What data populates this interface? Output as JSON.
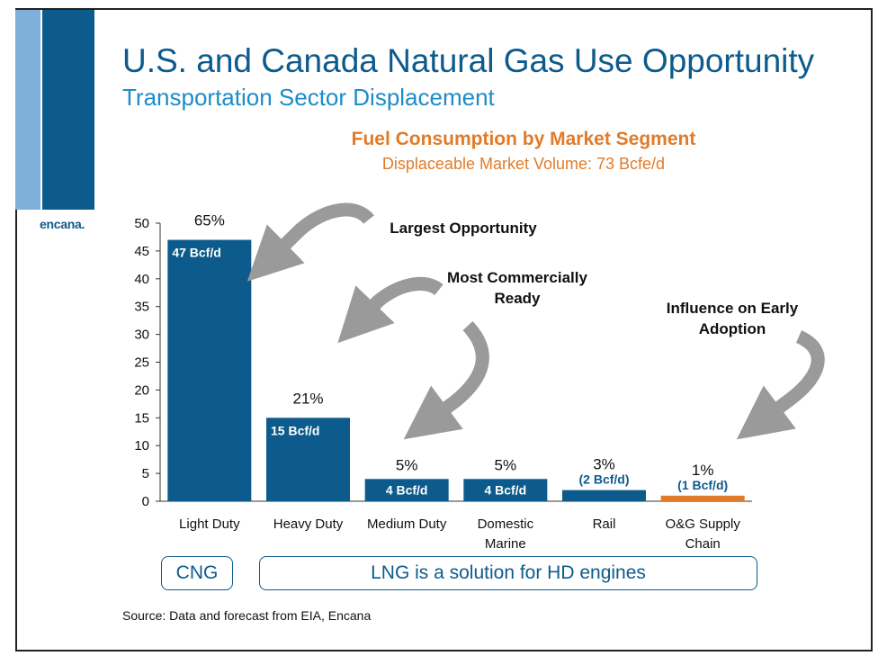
{
  "slide": {
    "title": "U.S. and Canada Natural Gas Use Opportunity",
    "subtitle": "Transportation Sector Displacement",
    "logo_text": "encana.",
    "source": "Source: Data and forecast from EIA, Encana",
    "colors": {
      "brand_dark": "#0d5b8c",
      "brand_light": "#7fb0dc",
      "accent_orange": "#e07b2a",
      "arrow_gray": "#9a9a9a"
    }
  },
  "annotations": {
    "largest": "Largest Opportunity",
    "commercial_line1": "Most Commercially",
    "commercial_line2": "Ready",
    "influence_line1": "Influence on Early",
    "influence_line2": "Adoption"
  },
  "boxes": {
    "cng": "CNG",
    "lng": "LNG is a solution for HD engines"
  },
  "chart_data": {
    "type": "bar",
    "title": "Fuel Consumption by Market Segment",
    "subtitle": "Displaceable Market Volume: 73 Bcfe/d",
    "categories": [
      [
        "Light Duty"
      ],
      [
        "Heavy Duty"
      ],
      [
        "Medium Duty"
      ],
      [
        "Domestic",
        "Marine"
      ],
      [
        "Rail"
      ],
      [
        "O&G Supply",
        "Chain"
      ]
    ],
    "values": [
      47,
      15,
      4,
      4,
      2,
      1
    ],
    "percent_labels": [
      "65%",
      "21%",
      "5%",
      "5%",
      "3%",
      "1%"
    ],
    "value_labels": [
      "47 Bcf/d",
      "15 Bcf/d",
      "4 Bcf/d",
      "4 Bcf/d",
      "(2 Bcf/d)",
      "(1 Bcf/d)"
    ],
    "bar_colors": [
      "#0d5b8c",
      "#0d5b8c",
      "#0d5b8c",
      "#0d5b8c",
      "#0d5b8c",
      "#e07b2a"
    ],
    "ylim": [
      0,
      50
    ],
    "yticks": [
      0,
      5,
      10,
      15,
      20,
      25,
      30,
      35,
      40,
      45,
      50
    ],
    "grid": false,
    "legend": "none"
  }
}
